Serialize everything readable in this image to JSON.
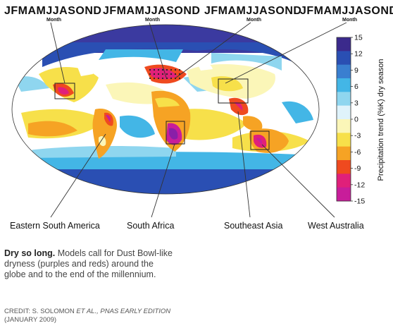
{
  "month_axis": {
    "letters": "JFMAMJJASOND",
    "sublabel": "Month"
  },
  "regions": [
    {
      "name": "Eastern South America"
    },
    {
      "name": "South Africa"
    },
    {
      "name": "Southeast Asia"
    },
    {
      "name": "West Australia"
    }
  ],
  "colorbar": {
    "title": "Precipitation trend (%K) dry season",
    "ticks": [
      "15",
      "12",
      "9",
      "6",
      "3",
      "0",
      "-3",
      "-6",
      "-9",
      "-12",
      "-15"
    ],
    "colors": [
      "#3b2a8c",
      "#2a4fb3",
      "#3a7fd0",
      "#43b6e6",
      "#8fd6ef",
      "#dff3fb",
      "#fbf6b8",
      "#f7e04a",
      "#f6a324",
      "#ef4a1f",
      "#e0207a",
      "#c81d9a"
    ],
    "range": [
      -15,
      15
    ]
  },
  "caption": {
    "title": "Dry so long.",
    "body": "Models call for Dust Bowl-like dryness (purples and reds) around the globe and to the end of the millennium."
  },
  "credit": {
    "prefix": "CREDIT: S. SOLOMON ",
    "authors": "ET AL., PNAS EARLY EDITION",
    "date": " (JANUARY 2009)"
  }
}
